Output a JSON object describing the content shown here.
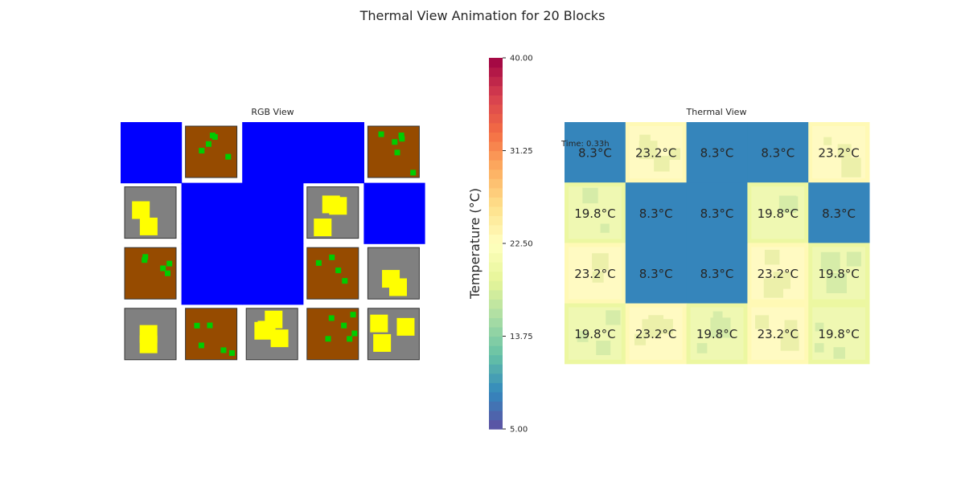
{
  "figure": {
    "title": "Thermal View Animation for 20 Blocks"
  },
  "chart_data": [
    {
      "type": "heatmap",
      "title": "RGB View",
      "grid": false,
      "rows": 4,
      "cols": 5,
      "colors": {
        "dirt": "#964B00",
        "concrete": "#808080",
        "water": "#0000FF",
        "grass": "#00CC00",
        "yellow": "#FFFF00"
      },
      "blocks": [
        {
          "row": 0,
          "col": 0,
          "kind": "water"
        },
        {
          "row": 0,
          "col": 1,
          "kind": "dirt"
        },
        {
          "row": 0,
          "col": 2,
          "kind": "water"
        },
        {
          "row": 0,
          "col": 3,
          "kind": "water"
        },
        {
          "row": 0,
          "col": 4,
          "kind": "dirt"
        },
        {
          "row": 1,
          "col": 0,
          "kind": "concrete"
        },
        {
          "row": 1,
          "col": 1,
          "kind": "water"
        },
        {
          "row": 1,
          "col": 2,
          "kind": "water"
        },
        {
          "row": 1,
          "col": 3,
          "kind": "concrete"
        },
        {
          "row": 1,
          "col": 4,
          "kind": "water"
        },
        {
          "row": 2,
          "col": 0,
          "kind": "dirt"
        },
        {
          "row": 2,
          "col": 1,
          "kind": "water"
        },
        {
          "row": 2,
          "col": 2,
          "kind": "water"
        },
        {
          "row": 2,
          "col": 3,
          "kind": "dirt"
        },
        {
          "row": 2,
          "col": 4,
          "kind": "concrete"
        },
        {
          "row": 3,
          "col": 0,
          "kind": "concrete"
        },
        {
          "row": 3,
          "col": 1,
          "kind": "dirt"
        },
        {
          "row": 3,
          "col": 2,
          "kind": "concrete"
        },
        {
          "row": 3,
          "col": 3,
          "kind": "dirt"
        },
        {
          "row": 3,
          "col": 4,
          "kind": "concrete"
        }
      ]
    },
    {
      "type": "heatmap",
      "title": "Thermal View",
      "annotation": "Time: 0.33h",
      "grid": false,
      "rows": 4,
      "cols": 5,
      "cells": [
        {
          "row": 0,
          "col": 0,
          "value": 8.3,
          "label": "8.3°C"
        },
        {
          "row": 0,
          "col": 1,
          "value": 23.2,
          "label": "23.2°C"
        },
        {
          "row": 0,
          "col": 2,
          "value": 8.3,
          "label": "8.3°C"
        },
        {
          "row": 0,
          "col": 3,
          "value": 8.3,
          "label": "8.3°C"
        },
        {
          "row": 0,
          "col": 4,
          "value": 23.2,
          "label": "23.2°C"
        },
        {
          "row": 1,
          "col": 0,
          "value": 19.8,
          "label": "19.8°C"
        },
        {
          "row": 1,
          "col": 1,
          "value": 8.3,
          "label": "8.3°C"
        },
        {
          "row": 1,
          "col": 2,
          "value": 8.3,
          "label": "8.3°C"
        },
        {
          "row": 1,
          "col": 3,
          "value": 19.8,
          "label": "19.8°C"
        },
        {
          "row": 1,
          "col": 4,
          "value": 8.3,
          "label": "8.3°C"
        },
        {
          "row": 2,
          "col": 0,
          "value": 23.2,
          "label": "23.2°C"
        },
        {
          "row": 2,
          "col": 1,
          "value": 8.3,
          "label": "8.3°C"
        },
        {
          "row": 2,
          "col": 2,
          "value": 8.3,
          "label": "8.3°C"
        },
        {
          "row": 2,
          "col": 3,
          "value": 23.2,
          "label": "23.2°C"
        },
        {
          "row": 2,
          "col": 4,
          "value": 19.8,
          "label": "19.8°C"
        },
        {
          "row": 3,
          "col": 0,
          "value": 19.8,
          "label": "19.8°C"
        },
        {
          "row": 3,
          "col": 1,
          "value": 23.2,
          "label": "23.2°C"
        },
        {
          "row": 3,
          "col": 2,
          "value": 19.8,
          "label": "19.8°C"
        },
        {
          "row": 3,
          "col": 3,
          "value": 23.2,
          "label": "23.2°C"
        },
        {
          "row": 3,
          "col": 4,
          "value": 19.8,
          "label": "19.8°C"
        }
      ],
      "colorbar": {
        "label": "Temperature (°C)",
        "range": [
          5.0,
          40.0
        ],
        "ticks": [
          5.0,
          13.75,
          22.5,
          31.25,
          40.0
        ],
        "tick_labels": [
          "5.00",
          "13.75",
          "22.50",
          "31.25",
          "40.00"
        ],
        "colormap": "Spectral_r"
      }
    }
  ]
}
